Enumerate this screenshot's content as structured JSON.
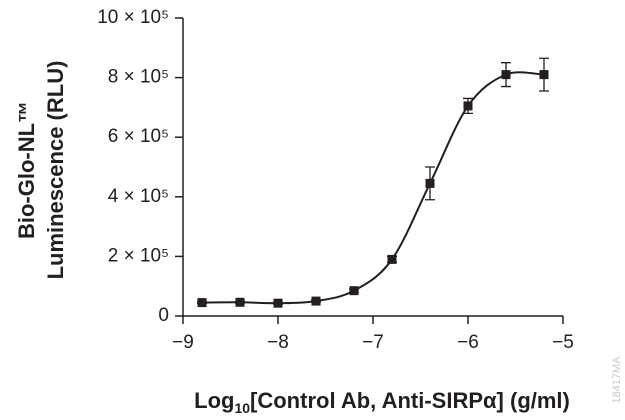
{
  "chart_data": {
    "type": "scatter",
    "y_label": [
      "Bio-Glo-NL™",
      "Luminescence (RLU)"
    ],
    "x_label": [
      "Log",
      "10",
      "[Control Ab, Anti-SIRPα] (g/ml)"
    ],
    "watermark": "18417MA",
    "x": [
      -8.8,
      -8.4,
      -8.0,
      -7.6,
      -7.2,
      -6.8,
      -6.4,
      -6.0,
      -5.6,
      -5.2
    ],
    "values": [
      45000,
      46000,
      43000,
      50000,
      85000,
      190000,
      445000,
      705000,
      810000,
      810000
    ],
    "errors": [
      3000,
      3000,
      3000,
      3000,
      5000,
      10000,
      55000,
      25000,
      40000,
      55000
    ],
    "color": "#231f20",
    "xlim": [
      -9,
      -5
    ],
    "xticks": [
      {
        "value": -9,
        "label": "−9"
      },
      {
        "value": -8,
        "label": "−8"
      },
      {
        "value": -7,
        "label": "−7"
      },
      {
        "value": -6,
        "label": "−6"
      },
      {
        "value": -5,
        "label": "−5"
      }
    ],
    "ylim": [
      0,
      1000000
    ],
    "yticks": [
      0,
      {
        "value": 200000,
        "label": "2 × 10⁵"
      },
      {
        "value": 400000,
        "label": "4 × 10⁵"
      },
      {
        "value": 600000,
        "label": "6 × 10⁵"
      },
      {
        "value": 800000,
        "label": "8 × 10⁵"
      },
      {
        "value": 1000000,
        "label": "10 × 10⁵"
      }
    ],
    "grid": false
  }
}
